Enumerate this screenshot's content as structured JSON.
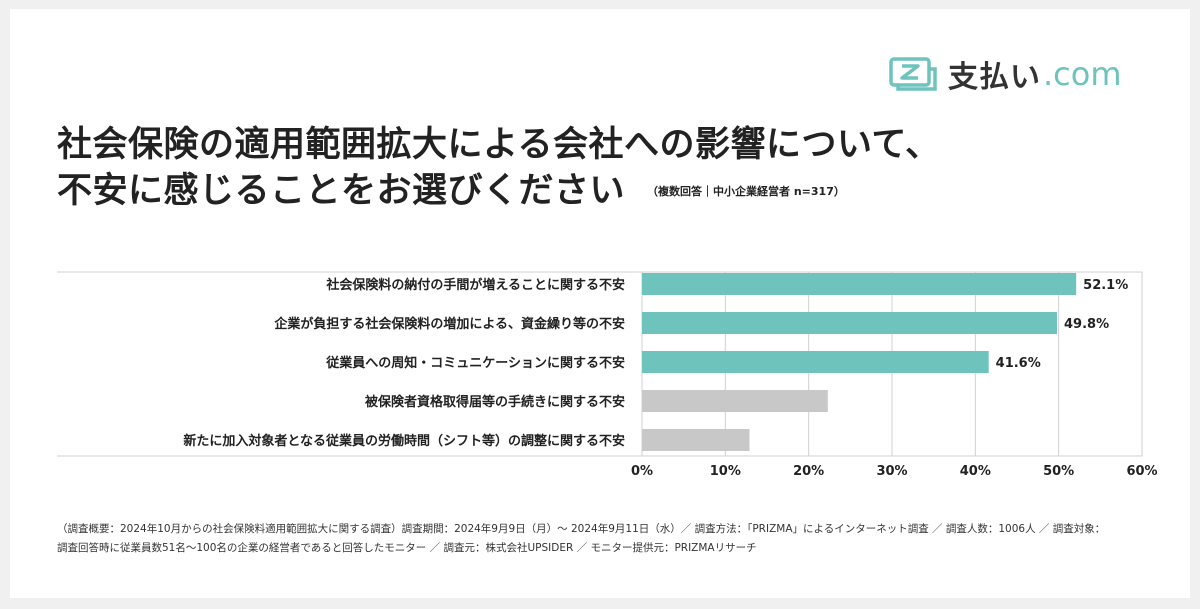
{
  "brand": {
    "name_jp": "支払い",
    "name_domain": ".com",
    "accent": "#6ec3bd",
    "icon": "card-z-icon"
  },
  "header": {
    "title_line1": "社会保険の適用範囲拡大による会社への影響について、",
    "title_line2": "不安に感じることをお選びください",
    "note": "（複数回答｜中小企業経営者 n=317）"
  },
  "chart_data": {
    "type": "bar",
    "orientation": "horizontal",
    "categories": [
      "社会保険料の納付の手間が増えることに関する不安",
      "企業が負担する社会保険料の増加による、資金繰り等の不安",
      "従業員への周知・コミュニケーションに関する不安",
      "被保険者資格取得届等の手続きに関する不安",
      "新たに加入対象者となる従業員の労働時間（シフト等）の調整に関する不安"
    ],
    "values": [
      52.1,
      49.8,
      41.6,
      22.3,
      12.9
    ],
    "data_labels": [
      "52.1%",
      "49.8%",
      "41.6%",
      "",
      ""
    ],
    "bar_colors": [
      "#6ec3bd",
      "#6ec3bd",
      "#6ec3bd",
      "#c8c8c8",
      "#c8c8c8"
    ],
    "xlim": [
      0,
      60
    ],
    "xticks": [
      "0%",
      "10%",
      "20%",
      "30%",
      "40%",
      "50%",
      "60%"
    ],
    "grid": true
  },
  "footnote": {
    "line1": "（調査概要：2024年10月からの社会保険料適用範囲拡大に関する調査）調査期間：2024年9月9日（月）〜 2024年9月11日（水）／ 調査方法：「PRIZMA」によるインターネット調査 ／ 調査人数：1006人 ／ 調査対象：",
    "line2": "調査回答時に従業員数51名〜100名の企業の経営者であると回答したモニター ／ 調査元：株式会社UPSIDER ／ モニター提供元：PRIZMAリサーチ"
  }
}
